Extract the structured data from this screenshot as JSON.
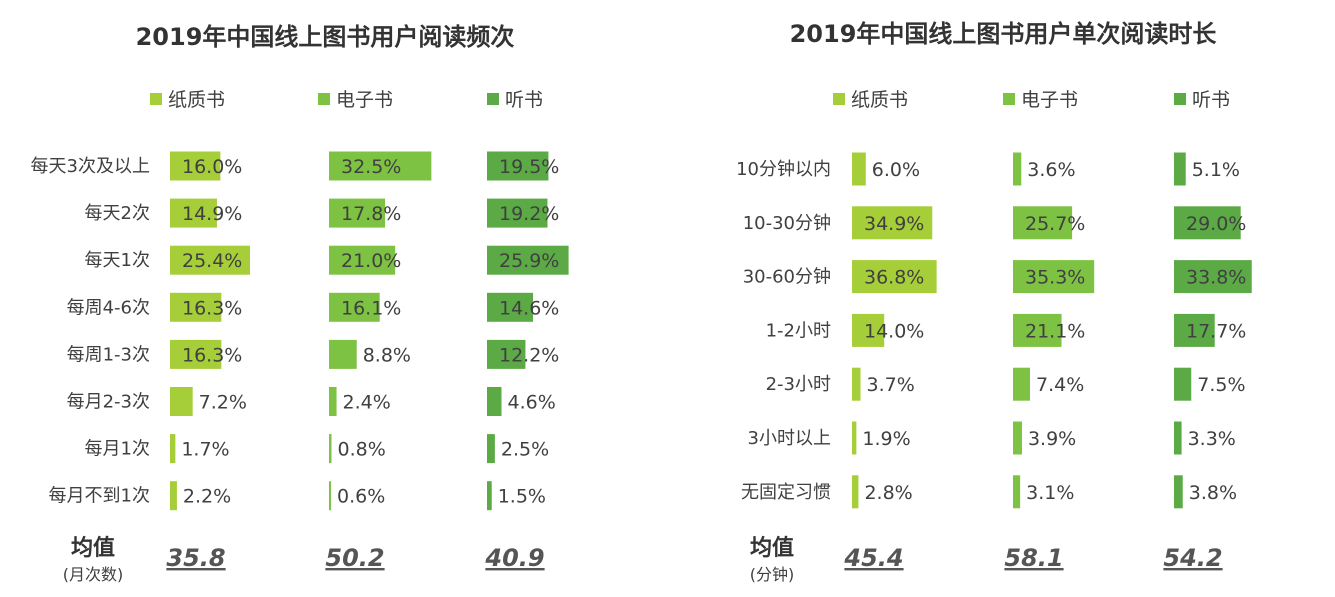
{
  "colors": {
    "series": [
      "#A6CE39",
      "#7DC242",
      "#5BAA46"
    ]
  },
  "chart_data": [
    {
      "type": "bar",
      "title": "2019年中国线上图书用户阅读频次",
      "legend": [
        "纸质书",
        "电子书",
        "听书"
      ],
      "categories": [
        "每天3次及以上",
        "每天2次",
        "每天1次",
        "每周4-6次",
        "每周1-3次",
        "每月2-3次",
        "每月1次",
        "每月不到1次"
      ],
      "series": [
        {
          "name": "纸质书",
          "values": [
            16.0,
            14.9,
            25.4,
            16.3,
            16.3,
            7.2,
            1.7,
            2.2
          ],
          "labels": [
            "16.0%",
            "14.9%",
            "25.4%",
            "16.3%",
            "16.3%",
            "7.2%",
            "1.7%",
            "2.2%"
          ]
        },
        {
          "name": "电子书",
          "values": [
            32.5,
            17.8,
            21.0,
            16.1,
            8.8,
            2.4,
            0.8,
            0.6
          ],
          "labels": [
            "32.5%",
            "17.8%",
            "21.0%",
            "16.1%",
            "8.8%",
            "2.4%",
            "0.8%",
            "0.6%"
          ]
        },
        {
          "name": "听书",
          "values": [
            19.5,
            19.2,
            25.9,
            14.6,
            12.2,
            4.6,
            2.5,
            1.5
          ],
          "labels": [
            "19.5%",
            "19.2%",
            "25.9%",
            "14.6%",
            "12.2%",
            "4.6%",
            "2.5%",
            "1.5%"
          ]
        }
      ],
      "avg_label": "均值",
      "avg_unit": "(月次数)",
      "averages": [
        "35.8",
        "50.2",
        "40.9"
      ]
    },
    {
      "type": "bar",
      "title": "2019年中国线上图书用户单次阅读时长",
      "legend": [
        "纸质书",
        "电子书",
        "听书"
      ],
      "categories": [
        "10分钟以内",
        "10-30分钟",
        "30-60分钟",
        "1-2小时",
        "2-3小时",
        "3小时以上",
        "无固定习惯"
      ],
      "series": [
        {
          "name": "纸质书",
          "values": [
            6.0,
            34.9,
            36.8,
            14.0,
            3.7,
            1.9,
            2.8
          ],
          "labels": [
            "6.0%",
            "34.9%",
            "36.8%",
            "14.0%",
            "3.7%",
            "1.9%",
            "2.8%"
          ]
        },
        {
          "name": "电子书",
          "values": [
            3.6,
            25.7,
            35.3,
            21.1,
            7.4,
            3.9,
            3.1
          ],
          "labels": [
            "3.6%",
            "25.7%",
            "35.3%",
            "21.1%",
            "7.4%",
            "3.9%",
            "3.1%"
          ]
        },
        {
          "name": "听书",
          "values": [
            5.1,
            29.0,
            33.8,
            17.7,
            7.5,
            3.3,
            3.8
          ],
          "labels": [
            "5.1%",
            "29.0%",
            "33.8%",
            "17.7%",
            "7.5%",
            "3.3%",
            "3.8%"
          ]
        }
      ],
      "avg_label": "均值",
      "avg_unit": "(分钟)",
      "averages": [
        "45.4",
        "58.1",
        "54.2"
      ]
    }
  ]
}
